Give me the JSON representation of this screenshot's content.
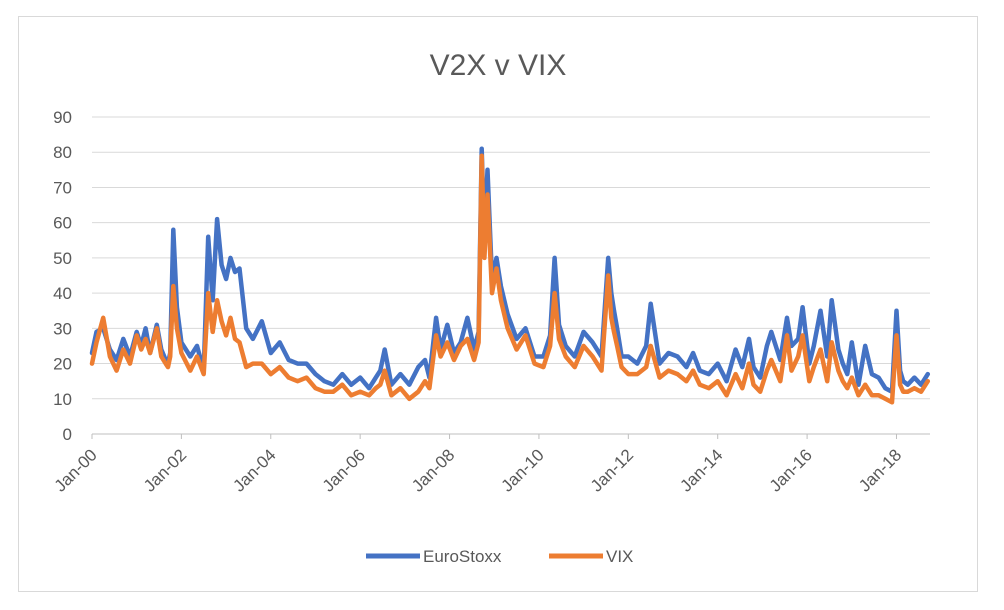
{
  "chart_data": {
    "type": "line",
    "title": "V2X v VIX",
    "xlabel": "",
    "ylabel": "",
    "ylim": [
      0,
      90
    ],
    "yticks": [
      "0",
      "10",
      "20",
      "30",
      "40",
      "50",
      "60",
      "70",
      "80",
      "90"
    ],
    "xlim": [
      2000.0,
      2018.75
    ],
    "xticks": [
      {
        "label": "Jan-00",
        "year": 2000
      },
      {
        "label": "Jan-02",
        "year": 2002
      },
      {
        "label": "Jan-04",
        "year": 2004
      },
      {
        "label": "Jan-06",
        "year": 2006
      },
      {
        "label": "Jan-08",
        "year": 2008
      },
      {
        "label": "Jan-10",
        "year": 2010
      },
      {
        "label": "Jan-12",
        "year": 2012
      },
      {
        "label": "Jan-14",
        "year": 2014
      },
      {
        "label": "Jan-16",
        "year": 2016
      },
      {
        "label": "Jan-18",
        "year": 2018
      }
    ],
    "grid": true,
    "legend_position": "bottom",
    "series": [
      {
        "name": "EuroStoxx",
        "color": "#4472C4",
        "x": [
          2000.0,
          2000.1,
          2000.25,
          2000.4,
          2000.55,
          2000.7,
          2000.85,
          2001.0,
          2001.1,
          2001.2,
          2001.3,
          2001.45,
          2001.55,
          2001.65,
          2001.7,
          2001.75,
          2001.82,
          2001.9,
          2002.0,
          2002.2,
          2002.35,
          2002.5,
          2002.6,
          2002.7,
          2002.8,
          2002.9,
          2003.0,
          2003.1,
          2003.2,
          2003.3,
          2003.45,
          2003.6,
          2003.8,
          2004.0,
          2004.2,
          2004.4,
          2004.6,
          2004.8,
          2005.0,
          2005.2,
          2005.4,
          2005.6,
          2005.8,
          2006.0,
          2006.2,
          2006.35,
          2006.45,
          2006.55,
          2006.7,
          2006.9,
          2007.1,
          2007.3,
          2007.45,
          2007.55,
          2007.7,
          2007.8,
          2007.95,
          2008.1,
          2008.25,
          2008.4,
          2008.55,
          2008.65,
          2008.72,
          2008.78,
          2008.85,
          2008.95,
          2009.05,
          2009.15,
          2009.3,
          2009.5,
          2009.7,
          2009.9,
          2010.1,
          2010.25,
          2010.35,
          2010.45,
          2010.6,
          2010.8,
          2011.0,
          2011.2,
          2011.4,
          2011.55,
          2011.62,
          2011.68,
          2011.75,
          2011.85,
          2012.0,
          2012.2,
          2012.4,
          2012.5,
          2012.7,
          2012.9,
          2013.1,
          2013.3,
          2013.45,
          2013.6,
          2013.8,
          2014.0,
          2014.2,
          2014.4,
          2014.55,
          2014.7,
          2014.8,
          2014.95,
          2015.1,
          2015.2,
          2015.4,
          2015.55,
          2015.65,
          2015.8,
          2015.9,
          2016.05,
          2016.15,
          2016.3,
          2016.45,
          2016.55,
          2016.7,
          2016.8,
          2016.9,
          2017.0,
          2017.15,
          2017.3,
          2017.45,
          2017.6,
          2017.75,
          2017.9,
          2018.0,
          2018.08,
          2018.15,
          2018.25,
          2018.4,
          2018.55,
          2018.7
        ],
        "values": [
          23,
          29,
          30,
          24,
          21,
          27,
          22,
          29,
          25,
          30,
          23,
          31,
          24,
          21,
          20,
          23,
          58,
          36,
          26,
          22,
          25,
          18,
          56,
          38,
          61,
          48,
          44,
          50,
          46,
          47,
          30,
          27,
          32,
          23,
          26,
          21,
          20,
          20,
          17,
          15,
          14,
          17,
          14,
          16,
          13,
          16,
          18,
          24,
          14,
          17,
          14,
          19,
          21,
          16,
          33,
          24,
          31,
          23,
          26,
          33,
          24,
          29,
          81,
          55,
          75,
          44,
          50,
          42,
          34,
          27,
          30,
          22,
          22,
          28,
          50,
          31,
          25,
          22,
          29,
          26,
          22,
          50,
          40,
          35,
          30,
          22,
          22,
          20,
          25,
          37,
          20,
          23,
          22,
          19,
          23,
          18,
          17,
          20,
          15,
          24,
          19,
          27,
          19,
          16,
          25,
          29,
          21,
          33,
          25,
          27,
          36,
          20,
          25,
          35,
          22,
          38,
          24,
          20,
          17,
          26,
          14,
          25,
          17,
          16,
          13,
          12,
          35,
          18,
          15,
          14,
          16,
          14,
          17
        ]
      },
      {
        "name": "VIX",
        "color": "#ED7D31",
        "x": [
          2000.0,
          2000.1,
          2000.25,
          2000.4,
          2000.55,
          2000.7,
          2000.85,
          2001.0,
          2001.1,
          2001.2,
          2001.3,
          2001.45,
          2001.55,
          2001.65,
          2001.7,
          2001.75,
          2001.82,
          2001.9,
          2002.0,
          2002.2,
          2002.35,
          2002.5,
          2002.6,
          2002.7,
          2002.8,
          2002.9,
          2003.0,
          2003.1,
          2003.2,
          2003.3,
          2003.45,
          2003.6,
          2003.8,
          2004.0,
          2004.2,
          2004.4,
          2004.6,
          2004.8,
          2005.0,
          2005.2,
          2005.4,
          2005.6,
          2005.8,
          2006.0,
          2006.2,
          2006.35,
          2006.45,
          2006.55,
          2006.7,
          2006.9,
          2007.1,
          2007.3,
          2007.45,
          2007.55,
          2007.7,
          2007.8,
          2007.95,
          2008.1,
          2008.25,
          2008.4,
          2008.55,
          2008.65,
          2008.72,
          2008.78,
          2008.85,
          2008.95,
          2009.05,
          2009.15,
          2009.3,
          2009.5,
          2009.7,
          2009.9,
          2010.1,
          2010.25,
          2010.35,
          2010.45,
          2010.6,
          2010.8,
          2011.0,
          2011.2,
          2011.4,
          2011.55,
          2011.62,
          2011.68,
          2011.75,
          2011.85,
          2012.0,
          2012.2,
          2012.4,
          2012.5,
          2012.7,
          2012.9,
          2013.1,
          2013.3,
          2013.45,
          2013.6,
          2013.8,
          2014.0,
          2014.2,
          2014.4,
          2014.55,
          2014.7,
          2014.8,
          2014.95,
          2015.1,
          2015.2,
          2015.4,
          2015.55,
          2015.65,
          2015.8,
          2015.9,
          2016.05,
          2016.15,
          2016.3,
          2016.45,
          2016.55,
          2016.7,
          2016.8,
          2016.9,
          2017.0,
          2017.15,
          2017.3,
          2017.45,
          2017.6,
          2017.75,
          2017.9,
          2018.0,
          2018.08,
          2018.15,
          2018.25,
          2018.4,
          2018.55,
          2018.7
        ],
        "values": [
          20,
          26,
          33,
          22,
          18,
          24,
          20,
          28,
          24,
          27,
          23,
          30,
          22,
          20,
          19,
          22,
          42,
          30,
          23,
          18,
          22,
          17,
          40,
          29,
          38,
          32,
          28,
          33,
          27,
          26,
          19,
          20,
          20,
          17,
          19,
          16,
          15,
          16,
          13,
          12,
          12,
          14,
          11,
          12,
          11,
          13,
          14,
          18,
          11,
          13,
          10,
          12,
          15,
          13,
          28,
          22,
          26,
          21,
          25,
          27,
          21,
          26,
          79,
          50,
          68,
          40,
          47,
          38,
          30,
          24,
          28,
          20,
          19,
          25,
          40,
          27,
          22,
          19,
          25,
          22,
          18,
          45,
          33,
          29,
          25,
          19,
          17,
          17,
          19,
          25,
          16,
          18,
          17,
          15,
          18,
          14,
          13,
          15,
          11,
          17,
          13,
          20,
          14,
          12,
          18,
          21,
          15,
          28,
          18,
          22,
          28,
          15,
          19,
          24,
          15,
          26,
          18,
          15,
          13,
          16,
          11,
          14,
          11,
          11,
          10,
          9,
          28,
          14,
          12,
          12,
          13,
          12,
          15
        ]
      }
    ]
  }
}
